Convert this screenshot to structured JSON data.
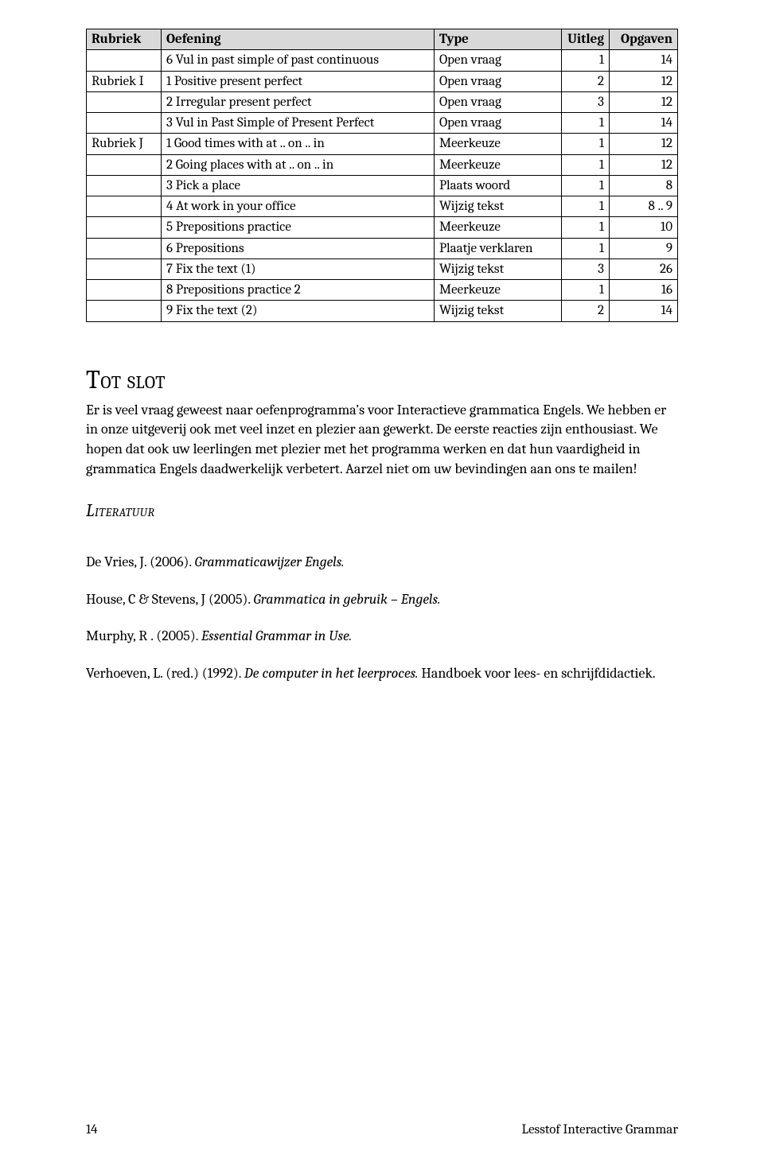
{
  "table": {
    "headers": [
      "Rubriek",
      "Oefening",
      "Type",
      "Uitleg",
      "Opgaven"
    ],
    "rows": [
      {
        "sec": "",
        "oef": "6 Vul in past simple of past continuous",
        "type": "Open vraag",
        "uitleg": "1",
        "opg": "14"
      },
      {
        "sec": "Rubriek I",
        "oef": "1 Positive present perfect",
        "type": "Open vraag",
        "uitleg": "2",
        "opg": "12"
      },
      {
        "sec": "",
        "oef": "2 Irregular present perfect",
        "type": "Open vraag",
        "uitleg": "3",
        "opg": "12"
      },
      {
        "sec": "",
        "oef": "3 Vul in Past Simple of Present Perfect",
        "type": "Open vraag",
        "uitleg": "1",
        "opg": "14"
      },
      {
        "sec": "Rubriek J",
        "oef": "1 Good times with at .. on .. in",
        "type": "Meerkeuze",
        "uitleg": "1",
        "opg": "12"
      },
      {
        "sec": "",
        "oef": "2 Going places with at .. on .. in",
        "type": "Meerkeuze",
        "uitleg": "1",
        "opg": "12"
      },
      {
        "sec": "",
        "oef": "3 Pick a place",
        "type": "Plaats woord",
        "uitleg": "1",
        "opg": "8"
      },
      {
        "sec": "",
        "oef": "4 At work in your office",
        "type": "Wijzig tekst",
        "uitleg": "1",
        "opg": "8 .. 9"
      },
      {
        "sec": "",
        "oef": "5 Prepositions practice",
        "type": "Meerkeuze",
        "uitleg": "1",
        "opg": "10"
      },
      {
        "sec": "",
        "oef": "6 Prepositions",
        "type": "Plaatje verklaren",
        "uitleg": "1",
        "opg": "9"
      },
      {
        "sec": "",
        "oef": "7 Fix the text (1)",
        "type": "Wijzig tekst",
        "uitleg": "3",
        "opg": "26"
      },
      {
        "sec": "",
        "oef": "8 Prepositions practice 2",
        "type": "Meerkeuze",
        "uitleg": "1",
        "opg": "16"
      },
      {
        "sec": "",
        "oef": "9 Fix the text (2)",
        "type": "Wijzig tekst",
        "uitleg": "2",
        "opg": "14"
      }
    ]
  },
  "tot_slot": {
    "heading": "Tot slot",
    "body": "Er is veel vraag geweest naar oefenprogramma’s voor Interactieve grammatica Engels. We hebben er in onze uitgeverij ook met veel inzet en plezier aan gewerkt. De eerste reacties zijn enthousiast. We hopen dat ook uw leerlingen met plezier met het programma werken en dat hun vaardigheid in grammatica Engels daadwerkelijk verbetert. Aarzel niet om uw bevindingen aan ons te mailen!"
  },
  "literatuur": {
    "heading": "Literatuur",
    "refs": [
      {
        "pre": "De Vries, J. (2006). ",
        "ital": "Grammaticawijzer Engels.",
        "post": ""
      },
      {
        "pre": "House, C & Stevens, J (2005). ",
        "ital": "Grammatica in gebruik – Engels.",
        "post": ""
      },
      {
        "pre": "Murphy, R . (2005). ",
        "ital": "Essential Grammar in Use.",
        "post": ""
      },
      {
        "pre": "Verhoeven, L. (red.) (1992). ",
        "ital": "De computer in het leerproces.",
        "post": " Handboek voor lees- en schrijfdidactiek."
      }
    ]
  },
  "footer": {
    "page": "14",
    "title": "Lesstof Interactive Grammar"
  }
}
